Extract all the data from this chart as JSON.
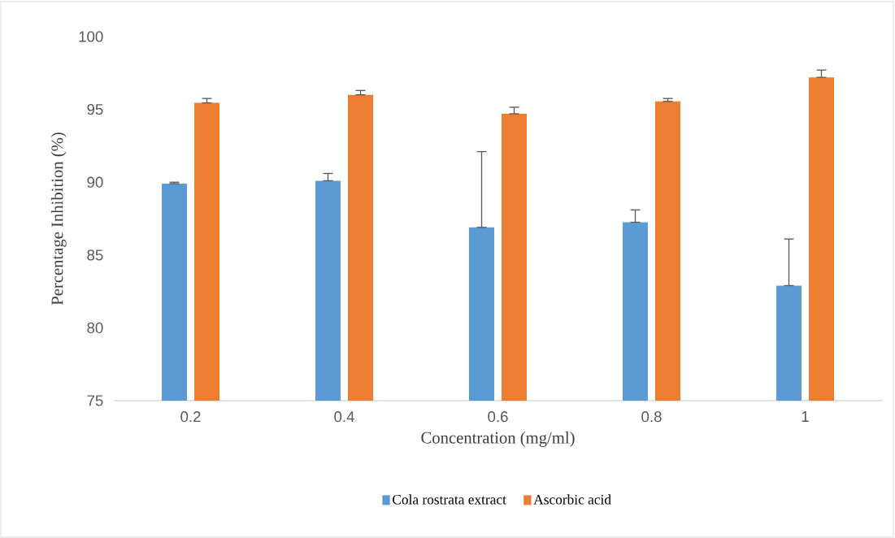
{
  "chart_data": {
    "type": "bar",
    "xlabel": "Concentration (mg/ml)",
    "ylabel": "Percentage Inhibition (%)",
    "categories": [
      "0.2",
      "0.4",
      "0.6",
      "0.8",
      "1"
    ],
    "series": [
      {
        "name": "Cola rostrata extract",
        "color": "#5b9bd5",
        "values": [
          89.9,
          90.1,
          86.9,
          87.25,
          82.9
        ],
        "errors": [
          [
            89.9,
            90.0
          ],
          [
            90.1,
            90.6
          ],
          [
            86.9,
            92.1
          ],
          [
            87.25,
            88.1
          ],
          [
            82.9,
            86.1
          ]
        ]
      },
      {
        "name": "Ascorbic acid",
        "color": "#ed7d31",
        "values": [
          95.45,
          96.0,
          94.7,
          95.55,
          97.2
        ],
        "errors": [
          [
            95.45,
            95.75
          ],
          [
            96.0,
            96.3
          ],
          [
            94.7,
            95.15
          ],
          [
            95.55,
            95.75
          ],
          [
            97.2,
            97.7
          ]
        ]
      }
    ],
    "ylim": [
      75,
      100
    ],
    "yticks": [
      75,
      80,
      85,
      90,
      95,
      100
    ],
    "grid": false,
    "legend": "bottom"
  }
}
